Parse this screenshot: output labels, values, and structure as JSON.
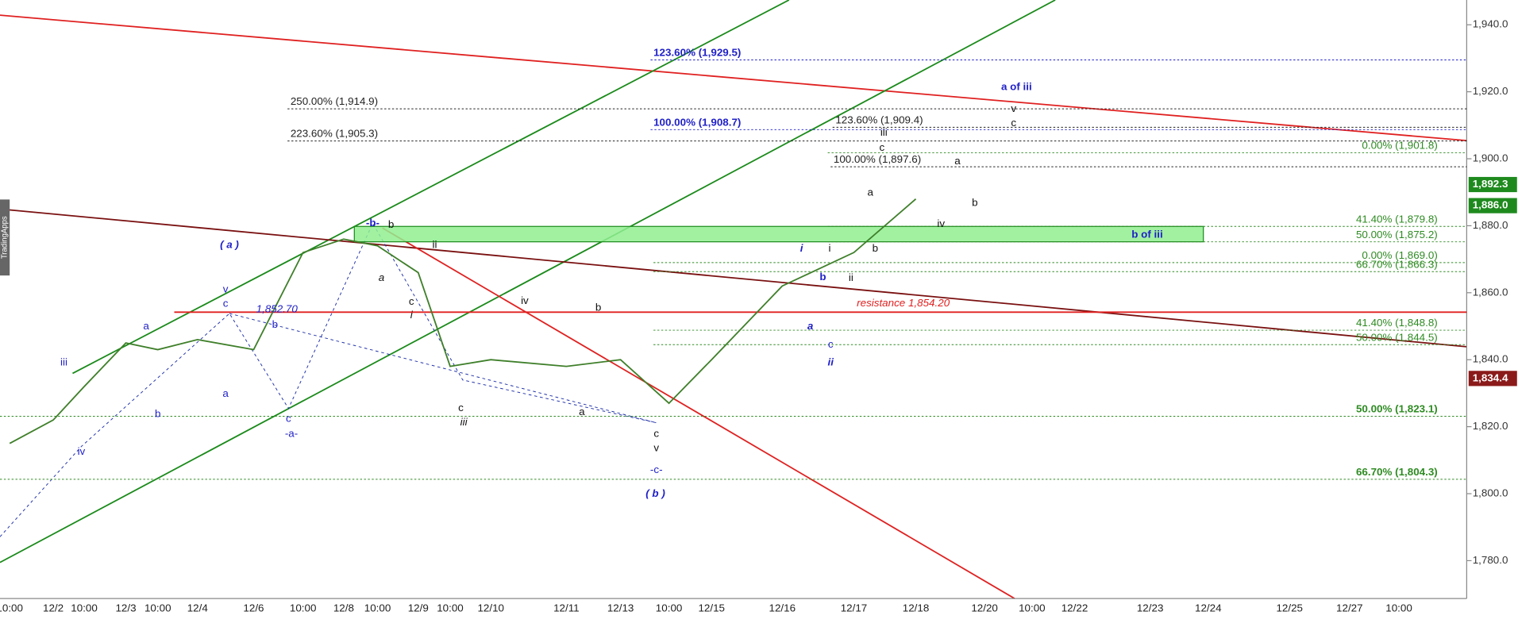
{
  "chart_data": {
    "type": "line",
    "watermark": "TradingApps",
    "categories": [
      "10:00",
      "12/2",
      "10:00",
      "12/3",
      "10:00",
      "12/4",
      "12/6",
      "10:00",
      "12/8",
      "10:00",
      "12/9",
      "10:00",
      "12/10",
      "12/11",
      "12/13",
      "10:00",
      "12/15",
      "12/16",
      "12/17",
      "12/18",
      "12/20",
      "10:00",
      "12/22",
      "12/23",
      "12/24",
      "12/25",
      "12/27",
      "10:00"
    ],
    "values": [
      1815,
      1822,
      1832,
      1845,
      1843,
      1846,
      1843,
      1872,
      1876,
      1874,
      1866,
      1838,
      1840,
      1838,
      1840,
      1827,
      1840,
      1862,
      1872,
      1888,
      null,
      null,
      null,
      null,
      null,
      null,
      null,
      null
    ],
    "color": "#3f7f2a",
    "ylim": [
      1768.7,
      1947.4
    ],
    "yticks": [
      {
        "value": 1780,
        "label": "1,780.0"
      },
      {
        "value": 1800,
        "label": "1,800.0"
      },
      {
        "value": 1820,
        "label": "1,820.0"
      },
      {
        "value": 1840,
        "label": "1,840.0"
      },
      {
        "value": 1860,
        "label": "1,860.0"
      },
      {
        "value": 1880,
        "label": "1,880.0"
      },
      {
        "value": 1900,
        "label": "1,900.0"
      },
      {
        "value": 1920,
        "label": "1,920.0"
      },
      {
        "value": 1940,
        "label": "1,940.0"
      }
    ],
    "fib_levels": [
      {
        "value": 1929.5,
        "label": "123.60% (1,929.5)",
        "color": "#1f1fc8"
      },
      {
        "value": 1914.9,
        "label": "250.00% (1,914.9)",
        "color": "#222222"
      },
      {
        "value": 1908.7,
        "label": "100.00% (1,908.7)",
        "color": "#1f1fc8"
      },
      {
        "value": 1909.4,
        "label": "123.60% (1,909.4)",
        "color": "#222222"
      },
      {
        "value": 1905.3,
        "label": "223.60% (1,905.3)",
        "color": "#222222"
      },
      {
        "value": 1901.8,
        "label": "0.00% (1,901.8)",
        "color": "#2e8b22"
      },
      {
        "value": 1897.6,
        "label": "100.00% (1,897.6)",
        "color": "#222222"
      },
      {
        "value": 1879.8,
        "label": "41.40% (1,879.8)",
        "color": "#2e8b22"
      },
      {
        "value": 1875.2,
        "label": "50.00% (1,875.2)",
        "color": "#2e8b22"
      },
      {
        "value": 1869.0,
        "label": "0.00% (1,869.0)",
        "color": "#2e8b22"
      },
      {
        "value": 1866.3,
        "label": "66.70% (1,866.3)",
        "color": "#2e8b22"
      },
      {
        "value": 1848.8,
        "label": "41.40% (1,848.8)",
        "color": "#2e8b22"
      },
      {
        "value": 1844.5,
        "label": "50.00% (1,844.5)",
        "color": "#2e8b22"
      },
      {
        "value": 1823.1,
        "label": "50.00% (1,823.1)",
        "color": "#2e8b22"
      },
      {
        "value": 1804.3,
        "label": "66.70% (1,804.3)",
        "color": "#2e8b22"
      }
    ],
    "resistance": {
      "value": 1854.2,
      "label": "resistance 1,854.20",
      "color": "#e02020"
    },
    "zone": {
      "ylow": 1875.2,
      "yhigh": 1879.8,
      "label": "b of iii",
      "color": "#90ee90"
    },
    "price_tags": [
      {
        "value": 1892.3,
        "label": "1,892.3",
        "color": "#1e8a1e"
      },
      {
        "value": 1886.0,
        "label": "1,886.0",
        "color": "#1e8a1e"
      },
      {
        "value": 1834.4,
        "label": "1,834.4",
        "color": "#8b1a1a"
      }
    ],
    "annotations": [
      "( a )",
      "( b )",
      "i",
      "ii",
      "a",
      "b",
      "c",
      "iii",
      "iv",
      "a",
      "b",
      "a",
      "v",
      "c",
      "b",
      "c",
      "-a-",
      "1,852.70",
      "-b-",
      "-c-",
      "a of iii",
      "b",
      "ii",
      "a",
      "c",
      "i",
      "iv",
      "b",
      "c",
      "iii",
      "a",
      "c",
      "v",
      "i",
      "a",
      "b",
      "ii",
      "iii",
      "c",
      "a",
      "b",
      "iv",
      "v",
      "c"
    ]
  }
}
